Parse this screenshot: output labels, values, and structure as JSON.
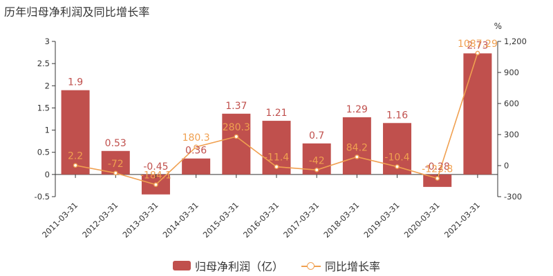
{
  "title": "历年归母净利润及同比增长率",
  "colors": {
    "bar": "#c0504d",
    "line": "#f0a050",
    "axis": "#333333"
  },
  "legend": {
    "bar_label": "归母净利润（亿）",
    "line_label": "同比增长率"
  },
  "chart_data": {
    "type": "bar",
    "title": "历年归母净利润及同比增长率",
    "categories": [
      "2011-03-31",
      "2012-03-31",
      "2013-03-31",
      "2014-03-31",
      "2015-03-31",
      "2016-03-31",
      "2017-03-31",
      "2018-03-31",
      "2019-03-31",
      "2020-03-31",
      "2021-03-31"
    ],
    "series": [
      {
        "name": "归母净利润（亿）",
        "type": "bar",
        "axis": "left",
        "values": [
          1.9,
          0.53,
          -0.45,
          0.36,
          1.37,
          1.21,
          0.7,
          1.29,
          1.16,
          -0.28,
          2.73
        ]
      },
      {
        "name": "同比增长率",
        "type": "line",
        "axis": "right",
        "values": [
          2.2,
          -72,
          -184.1,
          180.3,
          280.3,
          -11.4,
          -42,
          84.2,
          -10.4,
          -123.8,
          1087.29
        ]
      }
    ],
    "bar_labels": [
      "1.9",
      "0.53",
      "-0.45",
      "0.36",
      "1.37",
      "1.21",
      "0.7",
      "1.29",
      "1.16",
      "-0.28",
      "2.73"
    ],
    "line_labels": [
      "2.2",
      "-72",
      "-184.1",
      "180.3",
      "280.3",
      "-11.4",
      "-42",
      "84.2",
      "-10.4",
      "-123.8",
      "1087.29"
    ],
    "left_axis": {
      "ylim": [
        -0.5,
        3
      ],
      "ticks": [
        "-0.5",
        "0",
        "0.5",
        "1",
        "1.5",
        "2",
        "2.5",
        "3"
      ],
      "tick_values": [
        -0.5,
        0,
        0.5,
        1,
        1.5,
        2,
        2.5,
        3
      ]
    },
    "right_axis": {
      "ylim": [
        -300,
        1200
      ],
      "unit": "%",
      "ticks": [
        "-300",
        "0",
        "300",
        "600",
        "900",
        "1,200"
      ],
      "tick_values": [
        -300,
        0,
        300,
        600,
        900,
        1200
      ]
    },
    "grid": false,
    "legend_position": "bottom"
  }
}
